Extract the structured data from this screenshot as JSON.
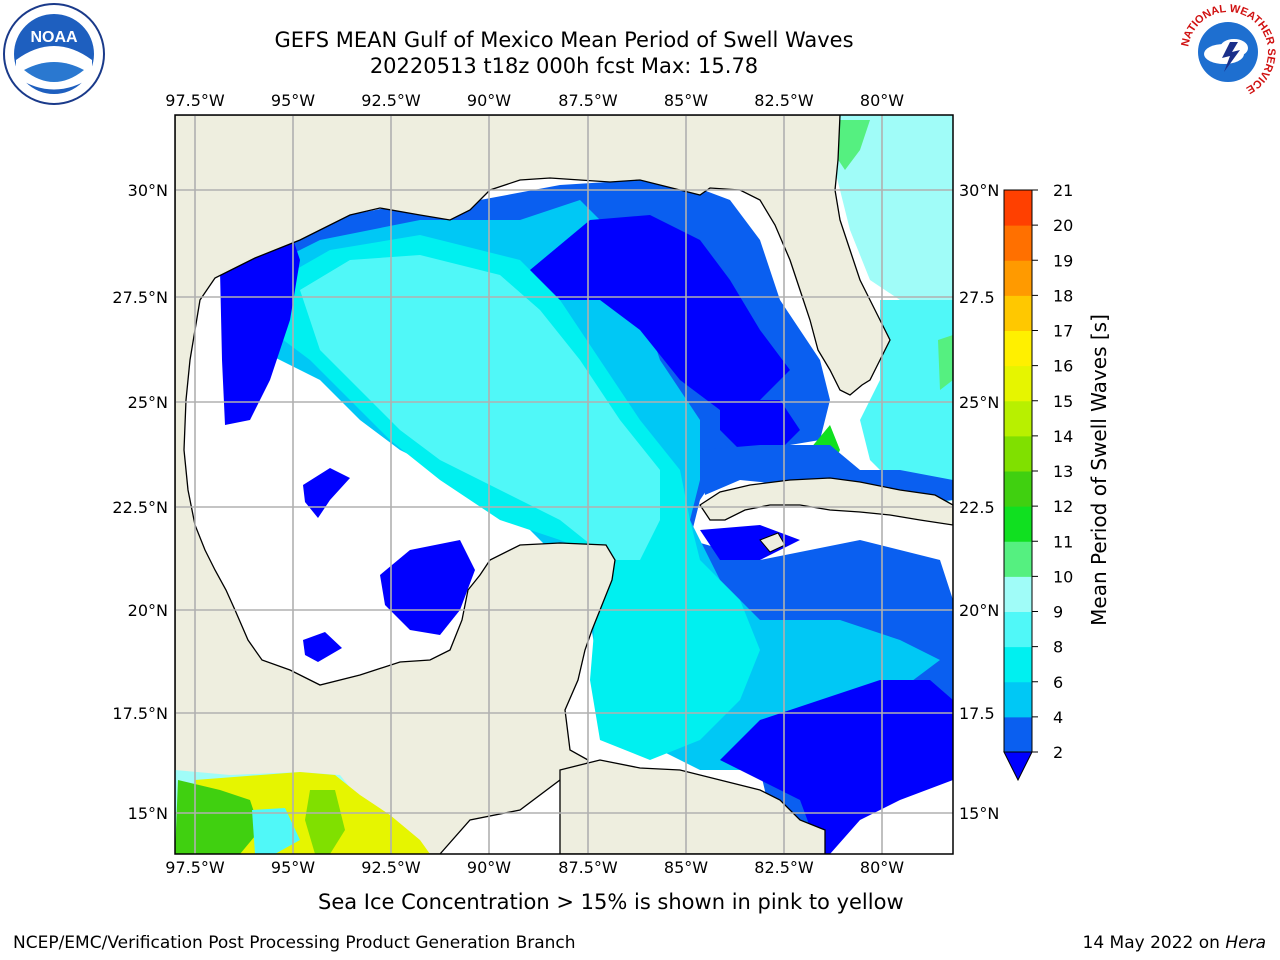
{
  "title": {
    "line1": "GEFS MEAN Gulf of Mexico Mean Period of Swell Waves",
    "line2": "20220513 t18z 000h fcst   Max: 15.78"
  },
  "map": {
    "lon_labels": [
      "97.5°W",
      "95°W",
      "92.5°W",
      "90°W",
      "87.5°W",
      "85°W",
      "82.5°W",
      "80°W"
    ],
    "lat_labels_left": [
      "30°N",
      "27.5°N",
      "25°N",
      "22.5°N",
      "20°N",
      "17.5°N",
      "15°N"
    ],
    "lat_labels_right": [
      "30°N",
      "27.5",
      "25°N",
      "22.5",
      "20°N",
      "17.5",
      "15°N"
    ],
    "colors": {
      "land": "#eeeedf",
      "no_data": "#ffffff",
      "grid": "#b0b0b0",
      "coast": "#000000"
    }
  },
  "colorbar": {
    "label": "Mean Period of Swell Waves [s]",
    "ticks": [
      "2",
      "4",
      "6",
      "8",
      "9",
      "10",
      "11",
      "12",
      "13",
      "14",
      "15",
      "16",
      "17",
      "18",
      "19",
      "20",
      "21"
    ],
    "colors": [
      "#0a5ff0",
      "#00c8f5",
      "#00f0f0",
      "#50f8f8",
      "#a0fcf8",
      "#55f080",
      "#10e020",
      "#40d010",
      "#80e000",
      "#b8f000",
      "#e6f500",
      "#fff000",
      "#ffc800",
      "#ff9a00",
      "#ff7000",
      "#ff4000",
      "#ff1000"
    ],
    "under_color": "#0000ff"
  },
  "note": "Sea Ice Concentration > 15% is shown in pink to yellow",
  "footer": {
    "left": "NCEP/EMC/Verification Post Processing Product Generation Branch",
    "right_prefix": "14 May 2022 on ",
    "right_host": "Hera"
  },
  "logos": {
    "noaa_text": "NOAA",
    "nws_ring_text": "NATIONAL WEATHER SERVICE"
  }
}
